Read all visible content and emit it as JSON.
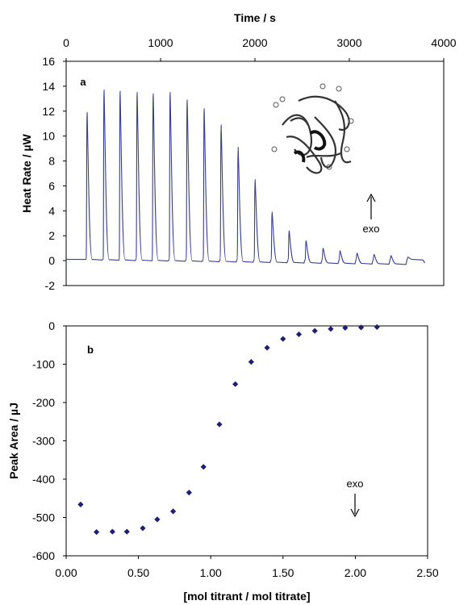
{
  "chart_data": [
    {
      "type": "line",
      "panel_label": "a",
      "xlabel": "Time / s",
      "ylabel": "Heat Rate / µW",
      "xlim": [
        0,
        4000
      ],
      "ylim": [
        -2,
        16
      ],
      "x_ticks": [
        "0",
        "1000",
        "2000",
        "3000",
        "4000"
      ],
      "y_ticks": [
        "-2",
        "0",
        "2",
        "4",
        "6",
        "8",
        "10",
        "12",
        "14",
        "16"
      ],
      "x_axis_position": "top",
      "baseline": 0.1,
      "series": [
        {
          "peak_times": [
            220,
            400,
            570,
            750,
            920,
            1100,
            1280,
            1460,
            1640,
            1820,
            2000,
            2180,
            2360,
            2540,
            2720,
            2900,
            3080,
            3260,
            3440,
            3620
          ],
          "peak_heights": [
            11.9,
            13.7,
            13.6,
            13.5,
            13.4,
            13.5,
            12.9,
            12.2,
            10.9,
            9.1,
            6.5,
            3.9,
            2.4,
            1.6,
            1.0,
            0.8,
            0.6,
            0.5,
            0.4,
            0.3
          ]
        }
      ],
      "trace_end": [
        3800,
        -0.2
      ],
      "annotation": "exo",
      "inset": "protein ribbon structure",
      "color": "#3a3f8f"
    },
    {
      "type": "scatter",
      "panel_label": "b",
      "xlabel": "[mol titrant / mol titrate]",
      "ylabel": "Peak Area / µJ",
      "xlim": [
        0,
        2.5
      ],
      "ylim": [
        -600,
        0
      ],
      "x_ticks": [
        "0.00",
        "0.50",
        "1.00",
        "1.50",
        "2.00",
        "2.50"
      ],
      "y_ticks": [
        "0",
        "-100",
        "-200",
        "-300",
        "-400",
        "-500",
        "-600"
      ],
      "series": [
        {
          "x": [
            0.1,
            0.21,
            0.32,
            0.42,
            0.53,
            0.63,
            0.74,
            0.85,
            0.95,
            1.06,
            1.17,
            1.28,
            1.39,
            1.5,
            1.61,
            1.72,
            1.83,
            1.93,
            2.04,
            2.15
          ],
          "y": [
            -466,
            -538,
            -537,
            -537,
            -528,
            -505,
            -484,
            -435,
            -368,
            -257,
            -152,
            -94,
            -57,
            -34,
            -22,
            -13,
            -8,
            -5,
            -4,
            -3
          ]
        }
      ],
      "annotation": "exo",
      "color": "#1f1f6e"
    }
  ]
}
